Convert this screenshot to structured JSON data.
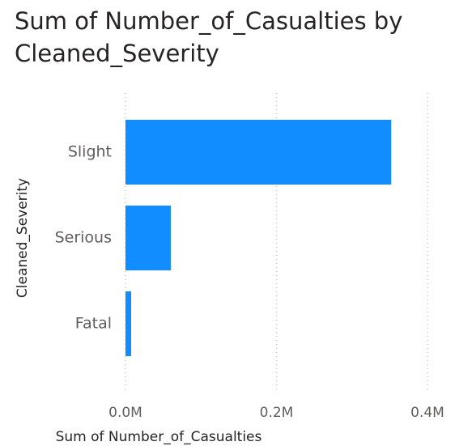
{
  "chart_data": {
    "type": "hbar",
    "title": "Sum of Number_of_Casualties by Cleaned_Severity",
    "x_label": "Sum of Number_of_Casualties",
    "y_label": "Cleaned_Severity",
    "categories": [
      "Slight",
      "Serious",
      "Fatal"
    ],
    "values": [
      352000,
      60000,
      7500
    ],
    "color": "#118dff",
    "xlim": [
      0,
      400000
    ],
    "xticks": [
      {
        "value": 0,
        "label": "0.0M"
      },
      {
        "value": 200000,
        "label": "0.2M"
      },
      {
        "value": 400000,
        "label": "0.4M"
      }
    ],
    "grid": true
  }
}
